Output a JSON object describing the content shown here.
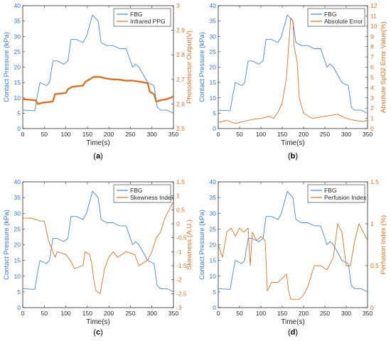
{
  "colors": {
    "fbg": "#4a86c8",
    "secondary": "#d4732a",
    "axis": "#262626"
  },
  "chart_data": [
    {
      "type": "line",
      "panel": "(a)",
      "panel_letter": "a",
      "xlabel": "Time(s)",
      "ylabel_left": "Contact Pressure (kPa)",
      "ylabel_right": "Photodetector Output(V)",
      "xlim": [
        0,
        350
      ],
      "ylim_left": [
        0,
        40
      ],
      "ylim_right": [
        2.5,
        3.0
      ],
      "xticks": [
        0,
        50,
        100,
        150,
        200,
        250,
        300,
        350
      ],
      "yticks_left": [
        0,
        5,
        10,
        15,
        20,
        25,
        30,
        35,
        40
      ],
      "yticks_right": [
        2.5,
        2.6,
        2.7,
        2.8,
        2.9,
        3.0
      ],
      "tick_labels_right": [
        "2.5",
        "2.6",
        "2.7",
        "2.8",
        "2.9",
        "3"
      ],
      "legend": [
        "FBG",
        "Infrared PPG"
      ],
      "series": [
        {
          "name": "FBG",
          "axis": "left",
          "x": [
            0,
            28,
            33,
            40,
            55,
            62,
            70,
            80,
            95,
            105,
            112,
            125,
            140,
            148,
            158,
            162,
            175,
            182,
            195,
            210,
            225,
            240,
            255,
            262,
            270,
            290,
            305,
            312,
            320,
            335,
            350
          ],
          "y": [
            6,
            5.8,
            10,
            15,
            14,
            15,
            22,
            22,
            21,
            22,
            29,
            29,
            28,
            30,
            35,
            37,
            35,
            28,
            27,
            27,
            26,
            26,
            20,
            21,
            20,
            15,
            14,
            7,
            6,
            6,
            5
          ]
        },
        {
          "name": "Infrared PPG",
          "axis": "right",
          "x": [
            0,
            30,
            35,
            45,
            70,
            75,
            100,
            105,
            115,
            140,
            145,
            155,
            165,
            180,
            190,
            210,
            220,
            240,
            255,
            275,
            290,
            295,
            305,
            310,
            320,
            335,
            350
          ],
          "y": [
            2.62,
            2.615,
            2.6,
            2.605,
            2.61,
            2.64,
            2.645,
            2.66,
            2.67,
            2.675,
            2.69,
            2.7,
            2.71,
            2.71,
            2.705,
            2.7,
            2.7,
            2.695,
            2.695,
            2.69,
            2.685,
            2.65,
            2.64,
            2.61,
            2.615,
            2.62,
            2.63
          ]
        }
      ]
    },
    {
      "type": "line",
      "panel": "(b)",
      "panel_letter": "b",
      "xlabel": "Time(s)",
      "ylabel_left": "Contact Pressure (kPa)",
      "ylabel_right": "Absolute SpO2 Error Value(%)",
      "xlim": [
        0,
        350
      ],
      "ylim_left": [
        0,
        40
      ],
      "ylim_right": [
        0,
        12
      ],
      "xticks": [
        0,
        50,
        100,
        150,
        200,
        250,
        300,
        350
      ],
      "yticks_left": [
        0,
        5,
        10,
        15,
        20,
        25,
        30,
        35,
        40
      ],
      "yticks_right": [
        0,
        1,
        2,
        3,
        4,
        5,
        6,
        7,
        8,
        9,
        10,
        11,
        12
      ],
      "legend": [
        "FBG",
        "Absolute Error"
      ],
      "series": [
        {
          "name": "FBG",
          "axis": "left",
          "x": [
            0,
            28,
            33,
            40,
            55,
            62,
            70,
            80,
            95,
            105,
            112,
            125,
            140,
            148,
            158,
            162,
            175,
            182,
            195,
            210,
            225,
            240,
            255,
            262,
            270,
            290,
            305,
            312,
            320,
            335,
            350
          ],
          "y": [
            6,
            5.8,
            10,
            15,
            14,
            15,
            22,
            22,
            21,
            22,
            29,
            29,
            28,
            30,
            35,
            37,
            35,
            28,
            27,
            27,
            26,
            26,
            20,
            21,
            20,
            15,
            14,
            7,
            6,
            6,
            5
          ]
        },
        {
          "name": "Absolute Error",
          "axis": "right",
          "x": [
            0,
            20,
            40,
            60,
            80,
            100,
            120,
            130,
            140,
            150,
            160,
            165,
            170,
            175,
            178,
            185,
            190,
            200,
            220,
            250,
            280,
            300,
            320,
            340,
            350
          ],
          "y": [
            0.6,
            0.8,
            0.5,
            0.7,
            0.9,
            1.0,
            1.2,
            1.0,
            1.6,
            2.5,
            5.0,
            8.0,
            10.8,
            10.5,
            8.0,
            6.5,
            3.0,
            1.5,
            1.0,
            1.2,
            1.4,
            1.0,
            0.8,
            0.7,
            0.8
          ]
        }
      ]
    },
    {
      "type": "line",
      "panel": "(c)",
      "panel_letter": "c",
      "xlabel": "Time(s)",
      "ylabel_left": "Contact Pressure (kPa)",
      "ylabel_right": "Skewness (A.U.)",
      "xlim": [
        0,
        350
      ],
      "ylim_left": [
        0,
        40
      ],
      "ylim_right": [
        -3,
        1.5
      ],
      "xticks": [
        0,
        50,
        100,
        150,
        200,
        250,
        300,
        350
      ],
      "yticks_left": [
        0,
        5,
        10,
        15,
        20,
        25,
        30,
        35,
        40
      ],
      "yticks_right": [
        -3,
        -2.5,
        -2,
        -1.5,
        -1,
        -0.5,
        0,
        0.5,
        1,
        1.5
      ],
      "legend": [
        "FBG",
        "Skewness Index"
      ],
      "series": [
        {
          "name": "FBG",
          "axis": "left",
          "x": [
            0,
            28,
            33,
            40,
            55,
            62,
            70,
            80,
            95,
            105,
            112,
            125,
            140,
            148,
            158,
            162,
            175,
            182,
            195,
            210,
            225,
            240,
            255,
            262,
            270,
            290,
            305,
            312,
            320,
            335,
            350
          ],
          "y": [
            6,
            5.8,
            10,
            15,
            14,
            15,
            22,
            22,
            21,
            22,
            29,
            29,
            28,
            30,
            35,
            37,
            35,
            28,
            27,
            27,
            26,
            26,
            20,
            21,
            20,
            15,
            14,
            7,
            6,
            6,
            5
          ]
        },
        {
          "name": "Skewness Index",
          "axis": "right",
          "x": [
            0,
            20,
            40,
            50,
            60,
            70,
            75,
            80,
            100,
            110,
            120,
            140,
            145,
            155,
            160,
            165,
            170,
            180,
            190,
            200,
            210,
            220,
            240,
            260,
            270,
            280,
            290,
            300,
            310,
            320,
            330,
            340,
            350
          ],
          "y": [
            0.2,
            0.2,
            0.1,
            0.1,
            -0.6,
            -1.0,
            -1.2,
            -1.0,
            -1.1,
            -1.3,
            -1.6,
            -1.5,
            -1.0,
            -1.1,
            -1.4,
            -2.0,
            -2.4,
            -2.5,
            -1.6,
            -1.2,
            -1.0,
            -1.2,
            -1.0,
            -1.1,
            -1.5,
            -1.4,
            -1.3,
            -1.0,
            -0.5,
            -0.3,
            0.2,
            0.5,
            0.8
          ]
        }
      ]
    },
    {
      "type": "line",
      "panel": "(d)",
      "panel_letter": "d",
      "xlabel": "Time(s)",
      "ylabel_left": "Contact Pressure (kPa)",
      "ylabel_right": "Perfusion Index (%)",
      "xlim": [
        0,
        350
      ],
      "ylim_left": [
        0,
        40
      ],
      "ylim_right": [
        0,
        1.5
      ],
      "xticks": [
        0,
        50,
        100,
        150,
        200,
        250,
        300,
        350
      ],
      "yticks_left": [
        0,
        5,
        10,
        15,
        20,
        25,
        30,
        35,
        40
      ],
      "yticks_right": [
        0,
        0.5,
        1,
        1.5
      ],
      "legend": [
        "FBG",
        "Perfusion Index"
      ],
      "series": [
        {
          "name": "FBG",
          "axis": "left",
          "x": [
            0,
            28,
            33,
            40,
            55,
            62,
            70,
            80,
            95,
            105,
            112,
            125,
            140,
            148,
            158,
            162,
            175,
            182,
            195,
            210,
            225,
            240,
            255,
            262,
            270,
            290,
            305,
            312,
            320,
            335,
            350
          ],
          "y": [
            6,
            5.8,
            10,
            15,
            14,
            15,
            22,
            22,
            21,
            22,
            29,
            29,
            28,
            30,
            35,
            37,
            35,
            28,
            27,
            27,
            26,
            26,
            20,
            21,
            20,
            15,
            14,
            7,
            6,
            6,
            5
          ]
        },
        {
          "name": "Perfusion Index",
          "axis": "right",
          "x": [
            0,
            10,
            20,
            30,
            40,
            50,
            60,
            70,
            75,
            80,
            90,
            100,
            110,
            115,
            125,
            140,
            150,
            160,
            165,
            170,
            180,
            190,
            200,
            210,
            225,
            240,
            255,
            260,
            270,
            280,
            290,
            300,
            310,
            320,
            330,
            340,
            350
          ],
          "y": [
            0.75,
            0.6,
            0.9,
            0.95,
            0.85,
            0.95,
            0.9,
            0.95,
            0.5,
            0.9,
            0.8,
            0.85,
            0.8,
            0.2,
            0.3,
            0.3,
            0.35,
            0.4,
            0.2,
            0.1,
            0.1,
            0.1,
            0.15,
            0.25,
            0.5,
            0.5,
            0.45,
            0.5,
            0.6,
            1.0,
            0.9,
            0.5,
            0.5,
            0.8,
            1.0,
            0.9,
            0.8
          ]
        }
      ]
    }
  ]
}
